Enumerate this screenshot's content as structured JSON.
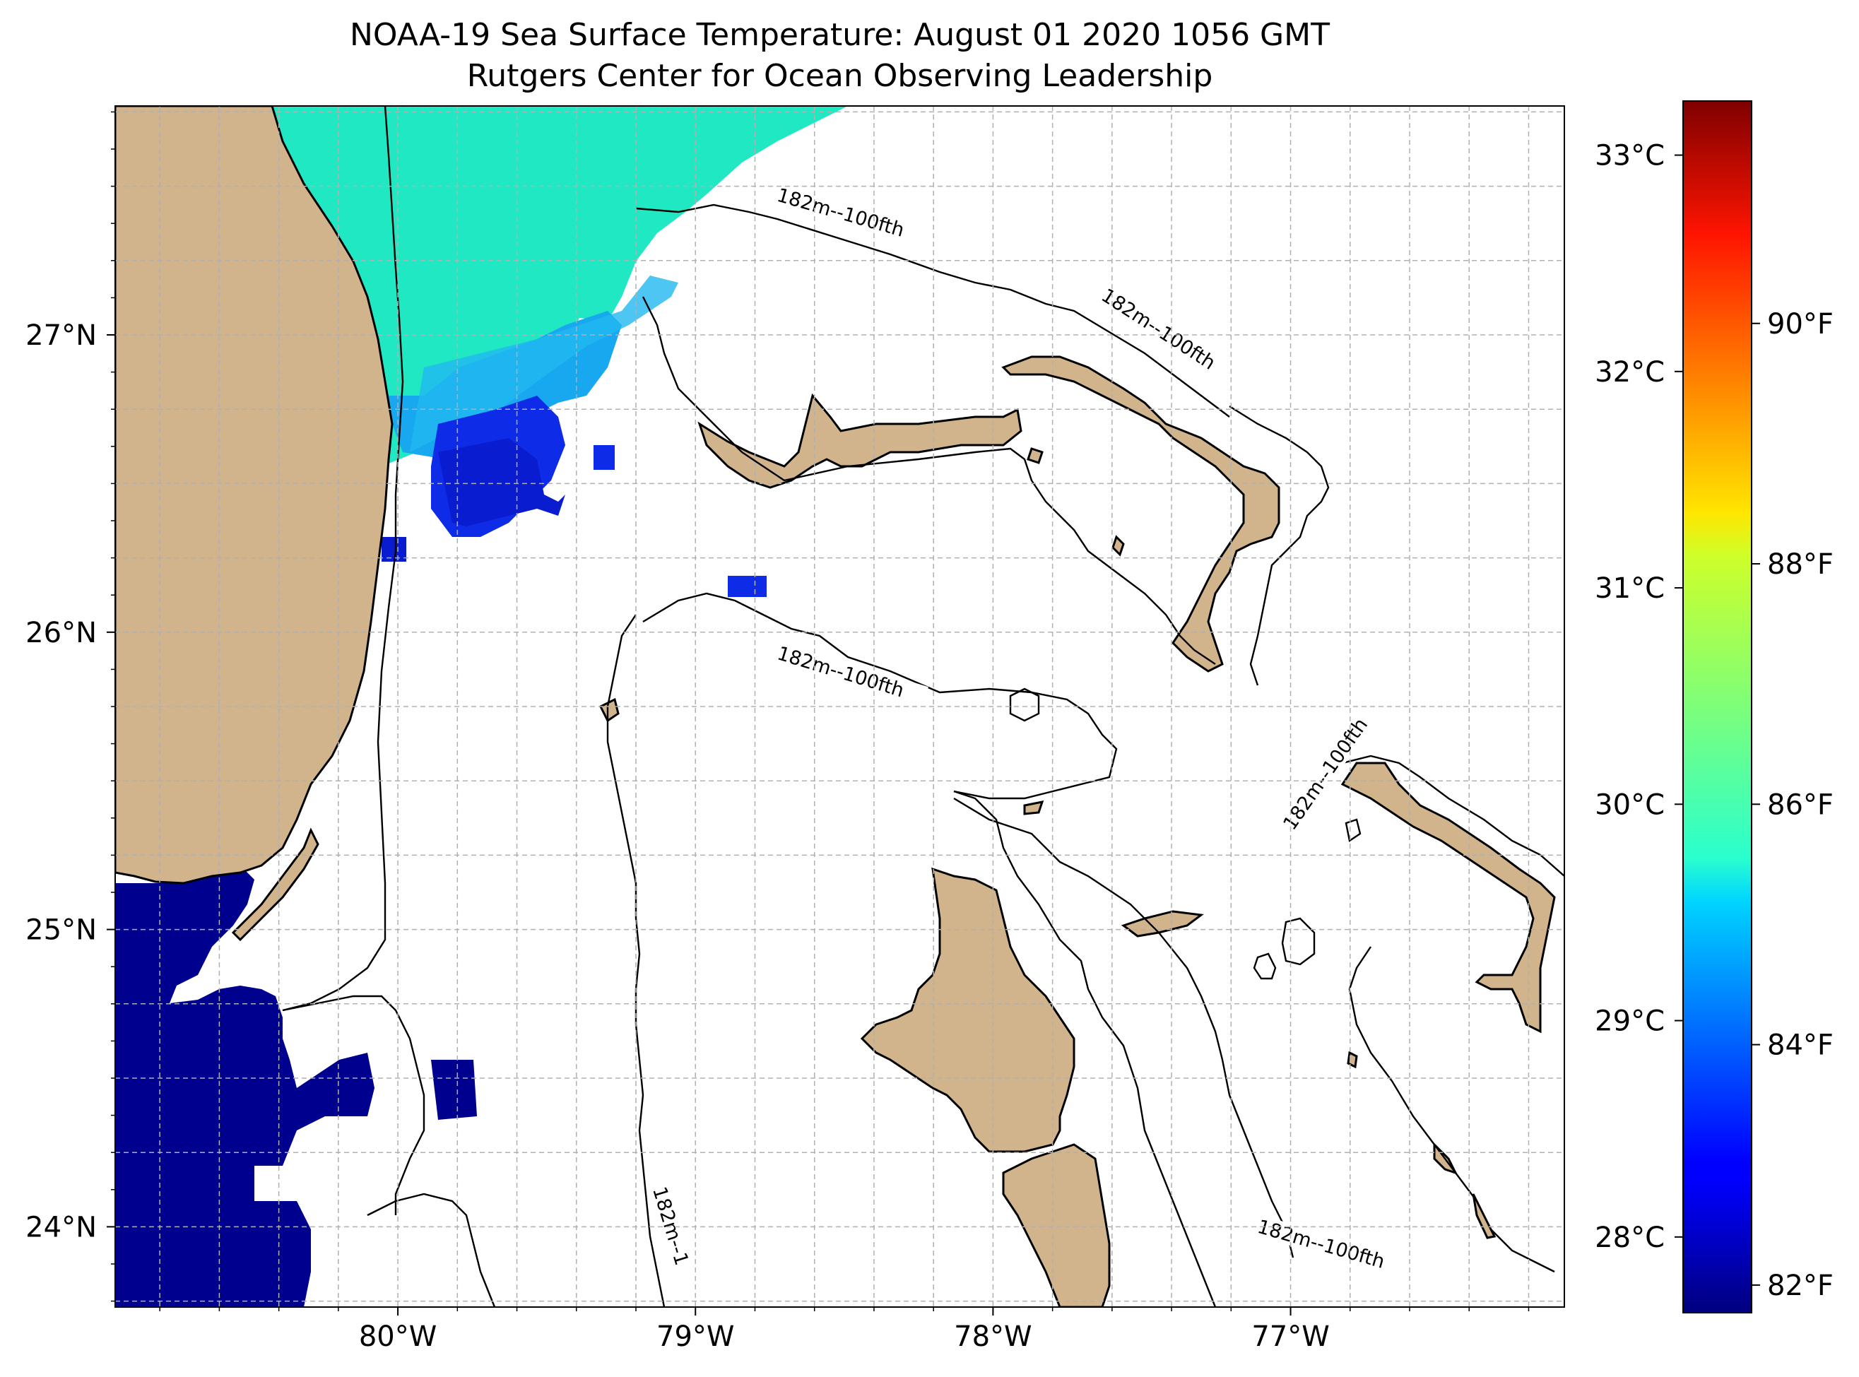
{
  "title": {
    "line1": "NOAA-19 Sea Surface Temperature: August 01 2020 1056 GMT",
    "line2": "Rutgers Center for Ocean Observing Leadership"
  },
  "map": {
    "lon_range": [
      -80.95,
      -76.08
    ],
    "lat_range": [
      23.73,
      27.77
    ],
    "lon_ticks": [
      {
        "value": -80,
        "label": "80°W"
      },
      {
        "value": -79,
        "label": "79°W"
      },
      {
        "value": -78,
        "label": "78°W"
      },
      {
        "value": -77,
        "label": "77°W"
      }
    ],
    "lat_ticks": [
      {
        "value": 24,
        "label": "24°N"
      },
      {
        "value": 25,
        "label": "25°N"
      },
      {
        "value": 26,
        "label": "26°N"
      },
      {
        "value": 27,
        "label": "27°N"
      }
    ],
    "grid": "dashed",
    "land_color": "#d2b48c",
    "lake_color": "#9bb8e0",
    "contour_label": "182m--100fth",
    "contour_label_truncated": "182m--1",
    "contour_labels": [
      {
        "text": "182m--100fth",
        "lon": -78.75,
        "lat": 27.36
      },
      {
        "text": "182m--100fth",
        "lon": -77.6,
        "lat": 27.05
      },
      {
        "text": "182m--100fth",
        "lon": -78.75,
        "lat": 25.87
      },
      {
        "text": "182m--100fth",
        "lon": -77.05,
        "lat": 25.5
      },
      {
        "text": "182m--100fth",
        "lon": -77.1,
        "lat": 23.92
      },
      {
        "text": "182m--1",
        "lon": -79.15,
        "lat": 23.9
      }
    ]
  },
  "colorbar": {
    "cmap": "jet",
    "min_c": 27.65,
    "max_c": 33.25,
    "celsius_ticks": [
      {
        "value": 28,
        "label": "28°C"
      },
      {
        "value": 29,
        "label": "29°C"
      },
      {
        "value": 30,
        "label": "30°C"
      },
      {
        "value": 31,
        "label": "31°C"
      },
      {
        "value": 32,
        "label": "32°C"
      },
      {
        "value": 33,
        "label": "33°C"
      }
    ],
    "fahrenheit_ticks": [
      {
        "value": 82,
        "label": "82°F"
      },
      {
        "value": 84,
        "label": "84°F"
      },
      {
        "value": 86,
        "label": "86°F"
      },
      {
        "value": 88,
        "label": "88°F"
      },
      {
        "value": 90,
        "label": "90°F"
      }
    ]
  }
}
